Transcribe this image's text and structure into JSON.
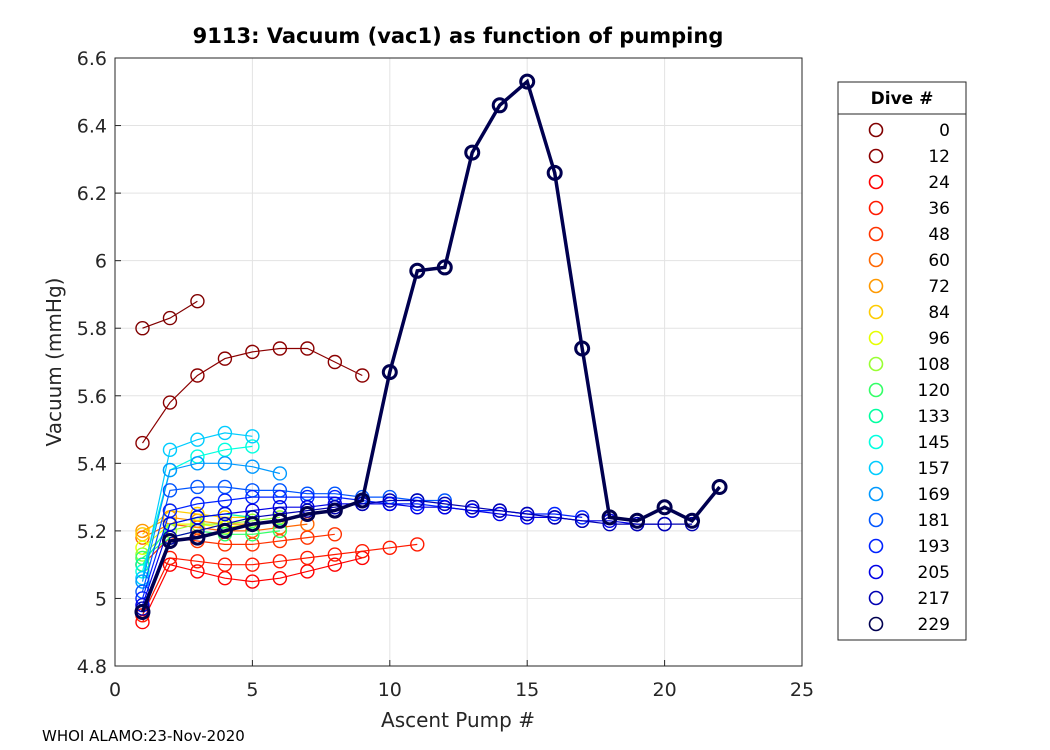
{
  "chart_data": {
    "type": "line",
    "title": "9113: Vacuum (vac1) as function of pumping",
    "xlabel": "Ascent Pump #",
    "ylabel": "Vacuum (mmHg)",
    "xlim": [
      0,
      25
    ],
    "ylim": [
      4.8,
      6.6
    ],
    "xticks": [
      0,
      5,
      10,
      15,
      20,
      25
    ],
    "yticks": [
      4.8,
      5,
      5.2,
      5.4,
      5.6,
      5.8,
      6,
      6.2,
      6.4,
      6.6
    ],
    "xtick_labels": [
      "0",
      "5",
      "10",
      "15",
      "20",
      "25"
    ],
    "ytick_labels": [
      "4.8",
      "5",
      "5.2",
      "5.4",
      "5.6",
      "5.8",
      "6",
      "6.2",
      "6.4",
      "6.6"
    ],
    "grid": true,
    "marker": "open-circle",
    "legend": {
      "title": "Dive #",
      "placement": "outside-right",
      "entries": [
        {
          "label": "0",
          "color": "#800000"
        },
        {
          "label": "12",
          "color": "#8b0000"
        },
        {
          "label": "24",
          "color": "#ff0000"
        },
        {
          "label": "36",
          "color": "#ff1a00"
        },
        {
          "label": "48",
          "color": "#ff3300"
        },
        {
          "label": "60",
          "color": "#ff6600"
        },
        {
          "label": "72",
          "color": "#ff9900"
        },
        {
          "label": "84",
          "color": "#ffcc00"
        },
        {
          "label": "96",
          "color": "#e6ff00"
        },
        {
          "label": "108",
          "color": "#99ff33"
        },
        {
          "label": "120",
          "color": "#33ff66"
        },
        {
          "label": "133",
          "color": "#00ffa0"
        },
        {
          "label": "145",
          "color": "#00ffe0"
        },
        {
          "label": "157",
          "color": "#00ccff"
        },
        {
          "label": "169",
          "color": "#0099ff"
        },
        {
          "label": "181",
          "color": "#0055ff"
        },
        {
          "label": "193",
          "color": "#0022ff"
        },
        {
          "label": "205",
          "color": "#0000e6"
        },
        {
          "label": "217",
          "color": "#0000b3"
        },
        {
          "label": "229",
          "color": "#000050"
        }
      ]
    },
    "series": [
      {
        "name": "0",
        "color": "#800000",
        "x": [
          1,
          2,
          3
        ],
        "y": [
          5.8,
          5.83,
          5.88
        ]
      },
      {
        "name": "12",
        "color": "#8b0000",
        "x": [
          1,
          2,
          3,
          4,
          5,
          6,
          7,
          8,
          9
        ],
        "y": [
          5.46,
          5.58,
          5.66,
          5.71,
          5.73,
          5.74,
          5.74,
          5.7,
          5.66
        ]
      },
      {
        "name": "24",
        "color": "#ff0000",
        "x": [
          1,
          2,
          3,
          4,
          5,
          6,
          7,
          8,
          9
        ],
        "y": [
          4.93,
          5.1,
          5.08,
          5.06,
          5.05,
          5.06,
          5.08,
          5.1,
          5.12
        ]
      },
      {
        "name": "36",
        "color": "#ff1a00",
        "x": [
          1,
          2,
          3,
          4,
          5,
          6,
          7,
          8,
          9,
          10,
          11
        ],
        "y": [
          4.95,
          5.12,
          5.11,
          5.1,
          5.1,
          5.11,
          5.12,
          5.13,
          5.14,
          5.15,
          5.16
        ]
      },
      {
        "name": "48",
        "color": "#ff3300",
        "x": [
          1,
          2,
          3,
          4,
          5,
          6,
          7,
          8
        ],
        "y": [
          5.1,
          5.18,
          5.17,
          5.16,
          5.16,
          5.17,
          5.18,
          5.19
        ]
      },
      {
        "name": "60",
        "color": "#ff6600",
        "x": [
          1,
          2,
          3,
          4,
          5,
          6,
          7
        ],
        "y": [
          5.18,
          5.22,
          5.21,
          5.2,
          5.2,
          5.21,
          5.22
        ]
      },
      {
        "name": "72",
        "color": "#ff9900",
        "x": [
          1,
          2,
          3,
          4,
          5,
          6
        ],
        "y": [
          5.2,
          5.24,
          5.23,
          5.22,
          5.22,
          5.23
        ]
      },
      {
        "name": "84",
        "color": "#ffcc00",
        "x": [
          1,
          2,
          3,
          4,
          5
        ],
        "y": [
          5.19,
          5.26,
          5.25,
          5.24,
          5.24
        ]
      },
      {
        "name": "96",
        "color": "#e6ff00",
        "x": [
          1,
          2,
          3,
          4,
          5
        ],
        "y": [
          5.15,
          5.22,
          5.22,
          5.21,
          5.22
        ]
      },
      {
        "name": "108",
        "color": "#99ff33",
        "x": [
          1,
          2,
          3,
          4,
          5,
          6
        ],
        "y": [
          5.13,
          5.2,
          5.22,
          5.22,
          5.23,
          5.24
        ]
      },
      {
        "name": "120",
        "color": "#33ff66",
        "x": [
          1,
          2,
          3,
          4,
          5,
          6
        ],
        "y": [
          5.12,
          5.18,
          5.2,
          5.19,
          5.19,
          5.2
        ]
      },
      {
        "name": "133",
        "color": "#00ffa0",
        "x": [
          1,
          2,
          3,
          4,
          5
        ],
        "y": [
          5.1,
          5.22,
          5.24,
          5.25,
          5.24
        ]
      },
      {
        "name": "145",
        "color": "#00ffe0",
        "x": [
          1,
          2,
          3,
          4,
          5
        ],
        "y": [
          5.08,
          5.38,
          5.42,
          5.44,
          5.45
        ]
      },
      {
        "name": "157",
        "color": "#00ccff",
        "x": [
          1,
          2,
          3,
          4,
          5
        ],
        "y": [
          5.06,
          5.44,
          5.47,
          5.49,
          5.48
        ]
      },
      {
        "name": "169",
        "color": "#0099ff",
        "x": [
          1,
          2,
          3,
          4,
          5,
          6
        ],
        "y": [
          5.05,
          5.38,
          5.4,
          5.4,
          5.39,
          5.37
        ]
      },
      {
        "name": "181",
        "color": "#0055ff",
        "x": [
          1,
          2,
          3,
          4,
          5,
          6,
          7,
          8,
          9,
          10,
          11,
          12
        ],
        "y": [
          5.02,
          5.32,
          5.33,
          5.33,
          5.32,
          5.32,
          5.31,
          5.31,
          5.3,
          5.3,
          5.29,
          5.29
        ]
      },
      {
        "name": "193",
        "color": "#0022ff",
        "x": [
          1,
          2,
          3,
          4,
          5,
          6,
          7,
          8,
          9,
          10,
          11,
          12,
          13,
          14,
          15,
          16,
          17
        ],
        "y": [
          5.0,
          5.26,
          5.28,
          5.29,
          5.3,
          5.3,
          5.3,
          5.3,
          5.29,
          5.28,
          5.28,
          5.27,
          5.26,
          5.26,
          5.25,
          5.25,
          5.24
        ]
      },
      {
        "name": "205",
        "color": "#0000e6",
        "x": [
          1,
          2,
          3,
          4,
          5,
          6,
          7,
          8,
          9,
          10,
          11,
          12,
          13,
          14,
          15,
          16,
          17,
          18,
          19,
          20
        ],
        "y": [
          4.98,
          5.22,
          5.24,
          5.25,
          5.26,
          5.27,
          5.27,
          5.28,
          5.28,
          5.28,
          5.27,
          5.27,
          5.26,
          5.25,
          5.24,
          5.24,
          5.23,
          5.23,
          5.22,
          5.22
        ]
      },
      {
        "name": "217",
        "color": "#0000b3",
        "x": [
          1,
          2,
          3,
          4,
          5,
          6,
          7,
          8,
          9,
          10,
          11,
          12,
          13,
          14,
          15,
          16,
          17,
          18,
          19,
          20,
          21
        ],
        "y": [
          4.97,
          5.18,
          5.2,
          5.22,
          5.24,
          5.25,
          5.26,
          5.27,
          5.28,
          5.29,
          5.29,
          5.28,
          5.27,
          5.26,
          5.25,
          5.24,
          5.23,
          5.22,
          5.22,
          5.22,
          5.22
        ]
      },
      {
        "name": "229",
        "color": "#000050",
        "x": [
          1,
          2,
          3,
          4,
          5,
          6,
          7,
          8,
          9,
          10,
          11,
          12,
          13,
          14,
          15,
          16,
          17,
          18,
          19,
          20,
          21,
          22
        ],
        "y": [
          4.96,
          5.17,
          5.18,
          5.2,
          5.22,
          5.23,
          5.25,
          5.26,
          5.29,
          5.67,
          5.97,
          5.98,
          6.32,
          6.46,
          6.53,
          6.26,
          5.74,
          5.24,
          5.23,
          5.27,
          5.23,
          5.33
        ]
      }
    ]
  },
  "footer": "WHOI ALAMO:23-Nov-2020"
}
